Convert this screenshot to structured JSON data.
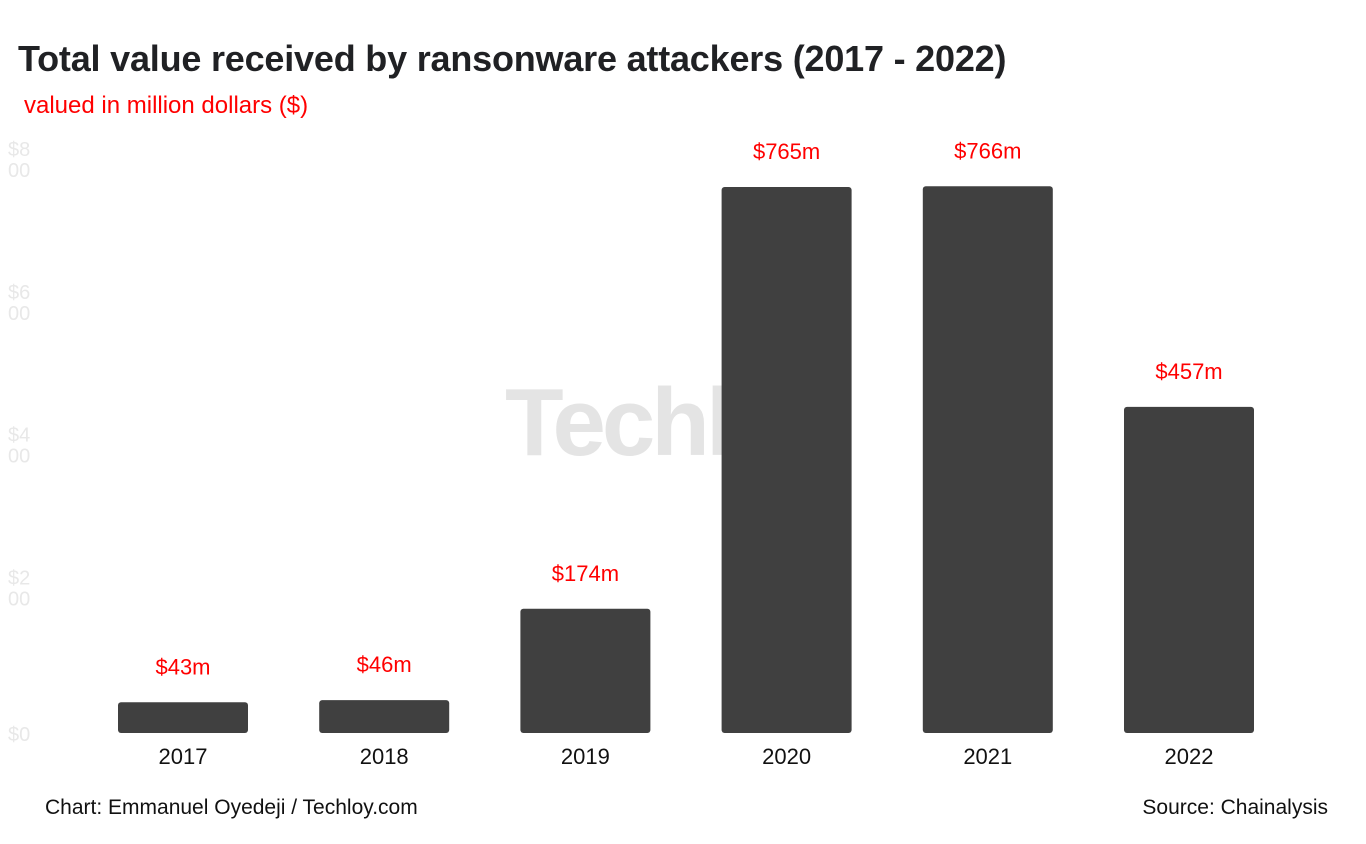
{
  "header": {
    "title": "Total value received by ransonware attackers (2017 - 2022)",
    "subtitle": "valued in million dollars ($)"
  },
  "watermark": {
    "text": "Techloy",
    "dot": "."
  },
  "footer": {
    "credit": "Chart: Emmanuel Oyedeji / Techloy.com",
    "source": "Source: Chainalysis"
  },
  "colors": {
    "bar": "#404040",
    "data_label": "#ff0000",
    "axis_label": "#e8e8e8",
    "category_label": "#111111"
  },
  "chart_data": {
    "type": "bar",
    "title": "Total value received by ransonware attackers (2017 - 2022)",
    "subtitle": "valued in million dollars ($)",
    "categories": [
      "2017",
      "2018",
      "2019",
      "2020",
      "2021",
      "2022"
    ],
    "values": [
      43,
      46,
      174,
      765,
      766,
      457
    ],
    "data_labels": [
      "$43m",
      "$46m",
      "$174m",
      "$765m",
      "$766m",
      "$457m"
    ],
    "y_ticks": [
      0,
      200,
      400,
      600,
      800
    ],
    "y_tick_labels": [
      "$0",
      "$200",
      "$400",
      "$600",
      "$800"
    ],
    "ylim": [
      0,
      800
    ],
    "grid": false,
    "legend": "none"
  }
}
